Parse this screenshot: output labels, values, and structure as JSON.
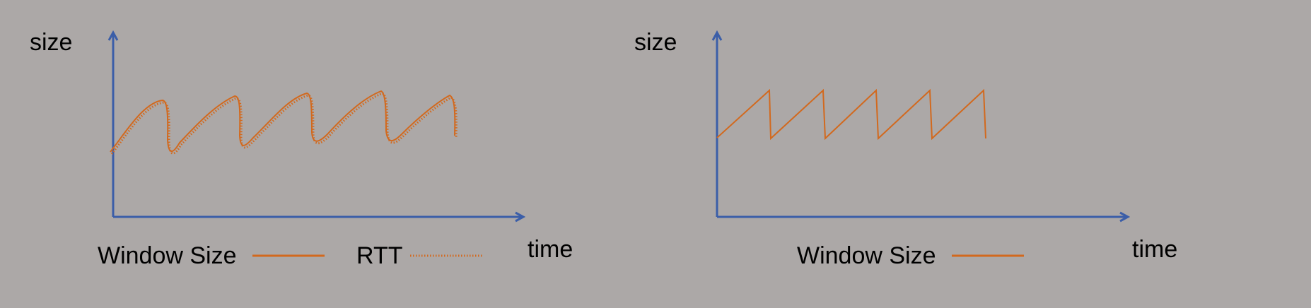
{
  "colors": {
    "background": "#aca8a7",
    "axis": "#3b5ea8",
    "series": "#d2691e"
  },
  "left_panel": {
    "y_label": "size",
    "x_label": "time",
    "legend": [
      {
        "label": "Window Size",
        "style": "solid"
      },
      {
        "label": "RTT",
        "style": "dotted"
      }
    ]
  },
  "right_panel": {
    "y_label": "size",
    "x_label": "time",
    "legend": [
      {
        "label": "Window Size",
        "style": "solid"
      }
    ]
  }
}
